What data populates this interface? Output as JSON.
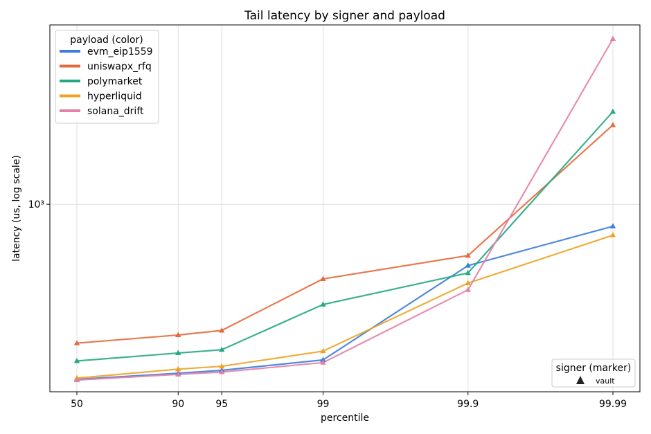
{
  "chart_data": {
    "type": "line",
    "title": "Tail latency by signer and payload",
    "xlabel": "percentile",
    "ylabel": "latency (us, log scale)",
    "yscale": "log",
    "ytick_label": "10³",
    "ytick_value": 1000,
    "ylim": [
      120,
      7600
    ],
    "x": [
      "50",
      "90",
      "95",
      "99",
      "99.9",
      "99.99"
    ],
    "grid": true,
    "legend_payload": {
      "title": "payload (color)",
      "placement": "top-left"
    },
    "legend_signer": {
      "title": "signer (marker)",
      "placement": "bottom-right",
      "entries": [
        {
          "label": "vault",
          "marker": "triangle"
        }
      ]
    },
    "series": [
      {
        "name": "evm_eip1559",
        "color": "#3b7dd8",
        "values": [
          138,
          148,
          153,
          172,
          500,
          780
        ]
      },
      {
        "name": "uniswapx_rfq",
        "color": "#e5693c",
        "values": [
          208,
          228,
          240,
          430,
          560,
          2450
        ]
      },
      {
        "name": "polymarket",
        "color": "#25a883",
        "values": [
          170,
          186,
          193,
          322,
          460,
          2850
        ]
      },
      {
        "name": "hyperliquid",
        "color": "#eca422",
        "values": [
          140,
          155,
          160,
          190,
          410,
          705
        ]
      },
      {
        "name": "solana_drift",
        "color": "#e480a8",
        "values": [
          137,
          146,
          150,
          167,
          380,
          6500
        ]
      }
    ]
  }
}
